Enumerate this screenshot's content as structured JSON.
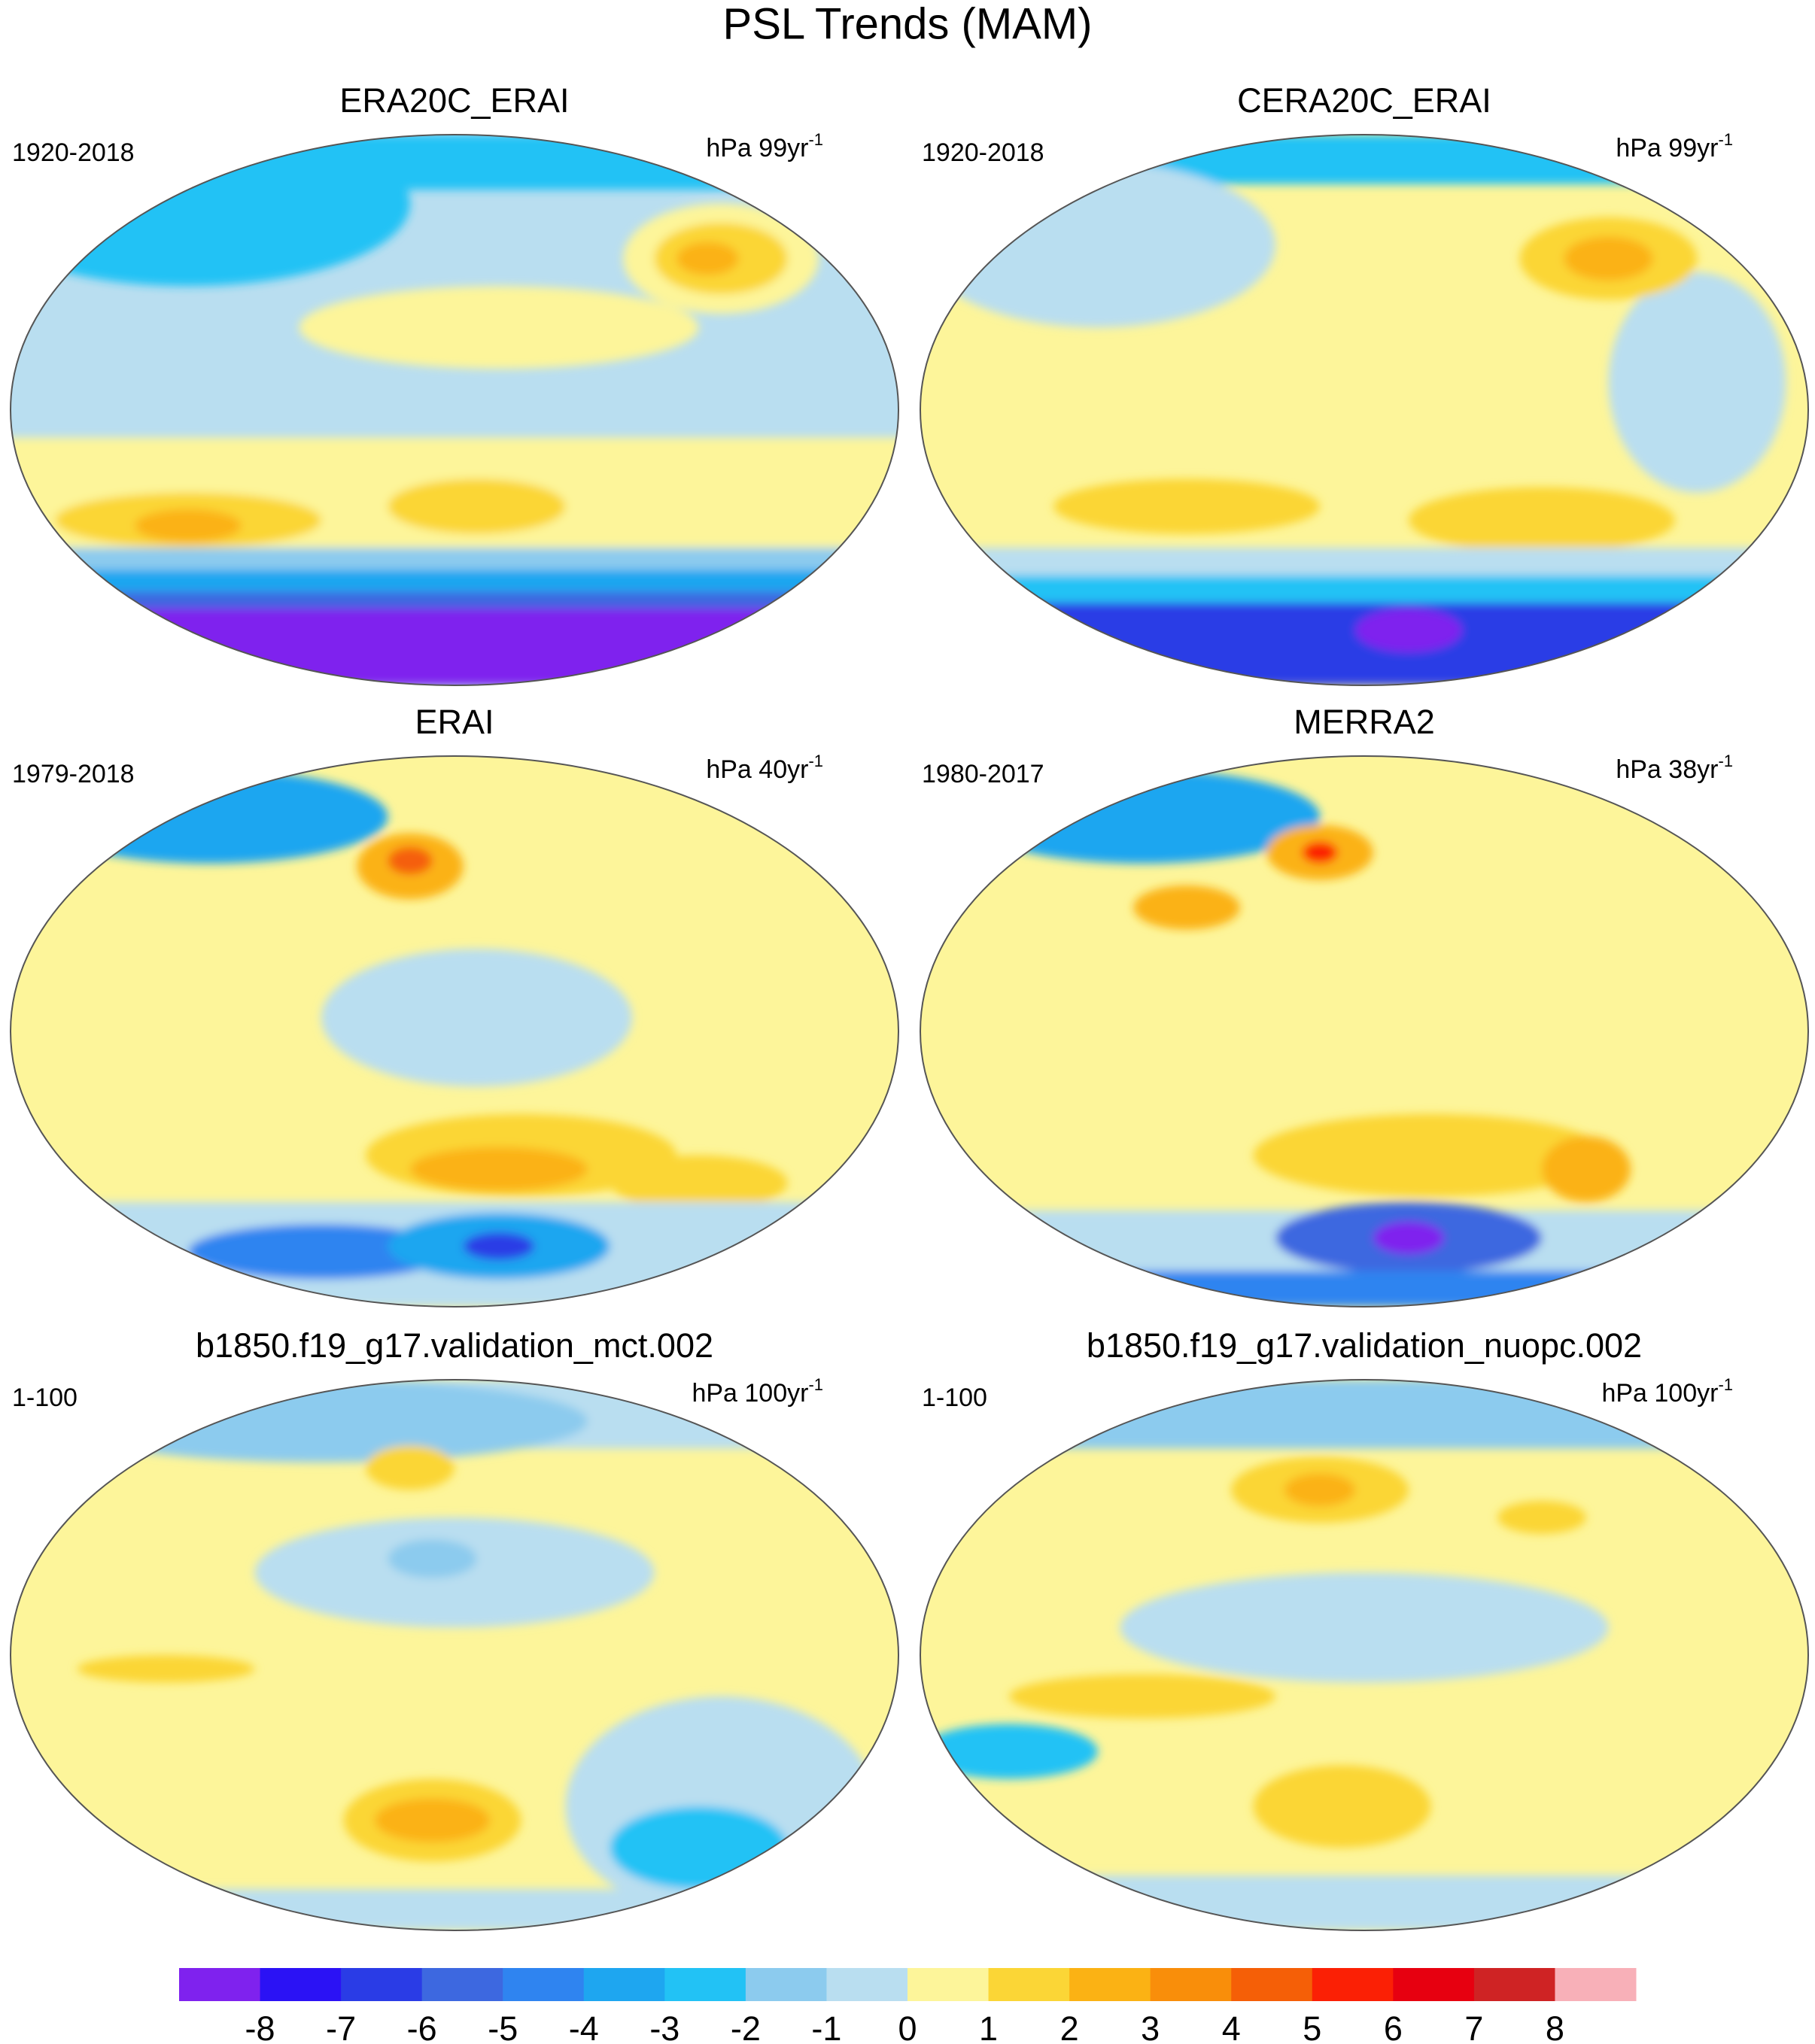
{
  "figure": {
    "title": "PSL Trends (MAM)",
    "panels": [
      {
        "title": "ERA20C_ERAI",
        "period": "1920-2018",
        "units": "hPa 99yr",
        "units_exponent": "-1"
      },
      {
        "title": "CERA20C_ERAI",
        "period": "1920-2018",
        "units": "hPa 99yr",
        "units_exponent": "-1"
      },
      {
        "title": "ERAI",
        "period": "1979-2018",
        "units": "hPa 40yr",
        "units_exponent": "-1"
      },
      {
        "title": "MERRA2",
        "period": "1980-2017",
        "units": "hPa 38yr",
        "units_exponent": "-1"
      },
      {
        "title": "b1850.f19_g17.validation_mct.002",
        "period": "1-100",
        "units": "hPa 100yr",
        "units_exponent": "-1"
      },
      {
        "title": "b1850.f19_g17.validation_nuopc.002",
        "period": "1-100",
        "units": "hPa 100yr",
        "units_exponent": "-1"
      }
    ],
    "colorbar": {
      "colors": [
        "#7f22ee",
        "#2b12f5",
        "#2a3ce6",
        "#3d68e0",
        "#2f84f0",
        "#1ea6f0",
        "#22c2f5",
        "#8ccbee",
        "#b9def0",
        "#fdf59a",
        "#fbd636",
        "#fbb214",
        "#f98e0a",
        "#f55f07",
        "#fb2005",
        "#e70010",
        "#cf2324",
        "#f8b0b8"
      ],
      "ticks": [
        -8,
        -7,
        -6,
        -5,
        -4,
        -3,
        -2,
        -1,
        0,
        1,
        2,
        3,
        4,
        5,
        6,
        7,
        8
      ]
    }
  }
}
